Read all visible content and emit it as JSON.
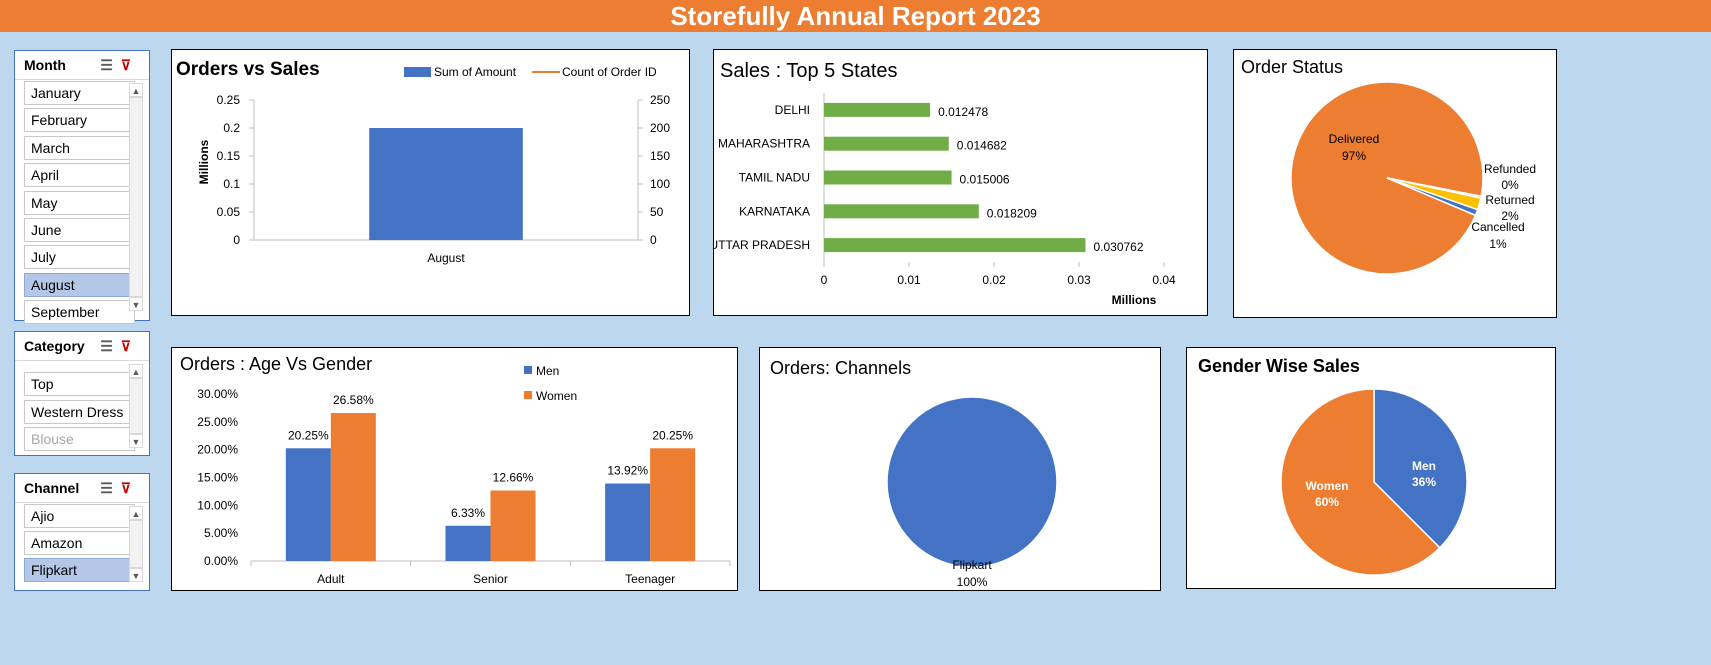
{
  "header": {
    "title": "Storefully Annual Report 2023"
  },
  "slicers": {
    "month": {
      "title": "Month",
      "items": [
        "January",
        "February",
        "March",
        "April",
        "May",
        "June",
        "July",
        "August",
        "September"
      ],
      "selected": "August"
    },
    "category": {
      "title": "Category",
      "items": [
        "Top",
        "Western Dress",
        "Blouse"
      ]
    },
    "channel": {
      "title": "Channel",
      "items": [
        "Ajio",
        "Amazon",
        "Flipkart"
      ],
      "selected": "Flipkart"
    }
  },
  "colors": {
    "blue": "#4472c4",
    "orange": "#ed7d31",
    "green": "#70ad47",
    "yellow": "#ffc000",
    "gray": "#a5a5a5"
  },
  "chart_data": [
    {
      "id": "orders_vs_sales",
      "type": "bar",
      "title": "Orders vs Sales",
      "categories": [
        "August"
      ],
      "series": [
        {
          "name": "Sum of Amount",
          "values": [
            0.2
          ],
          "axis": "left"
        },
        {
          "name": "Count of Order ID",
          "values": [
            200
          ],
          "axis": "right"
        }
      ],
      "ylabel": "Millions",
      "ylim": [
        0,
        0.25
      ],
      "yticks": [
        "0.25",
        "0.2",
        "0.15",
        "0.1",
        "0.05",
        "0"
      ],
      "y2lim": [
        0,
        250
      ],
      "y2ticks": [
        "250",
        "200",
        "150",
        "100",
        "50",
        "0"
      ],
      "legend": "top-right"
    },
    {
      "id": "top_states",
      "type": "bar",
      "orientation": "horizontal",
      "title": "Sales : Top 5 States",
      "categories": [
        "DELHI",
        "MAHARASHTRA",
        "TAMIL NADU",
        "KARNATAKA",
        "UTTAR PRADESH"
      ],
      "values": [
        0.012478,
        0.014682,
        0.015006,
        0.018209,
        0.030762
      ],
      "labels": [
        "0.012478",
        "0.014682",
        "0.015006",
        "0.018209",
        "0.030762"
      ],
      "xlabel": "Millions",
      "xlim": [
        0,
        0.04
      ],
      "xticks": [
        "0",
        "0.01",
        "0.02",
        "0.03",
        "0.04"
      ]
    },
    {
      "id": "order_status",
      "type": "pie",
      "title": "Order Status",
      "slices": [
        {
          "name": "Delivered",
          "value": 97,
          "label": "97%"
        },
        {
          "name": "Refunded",
          "value": 0.3,
          "label": "0%"
        },
        {
          "name": "Returned",
          "value": 2,
          "label": "2%"
        },
        {
          "name": "Cancelled",
          "value": 1,
          "label": "1%"
        }
      ]
    },
    {
      "id": "age_gender",
      "type": "bar",
      "title": "Orders : Age Vs Gender",
      "categories": [
        "Adult",
        "Senior",
        "Teenager"
      ],
      "series": [
        {
          "name": "Men",
          "values": [
            20.25,
            6.33,
            13.92
          ],
          "labels": [
            "20.25%",
            "6.33%",
            "13.92%"
          ]
        },
        {
          "name": "Women",
          "values": [
            26.58,
            12.66,
            20.25
          ],
          "labels": [
            "26.58%",
            "12.66%",
            "20.25%"
          ]
        }
      ],
      "ylim": [
        0,
        30
      ],
      "yticks": [
        "30.00%",
        "25.00%",
        "20.00%",
        "15.00%",
        "10.00%",
        "5.00%",
        "0.00%"
      ],
      "legend": "top-right"
    },
    {
      "id": "channels",
      "type": "pie",
      "title": "Orders: Channels",
      "slices": [
        {
          "name": "Flipkart",
          "value": 100,
          "label": "100%"
        }
      ]
    },
    {
      "id": "gender_sales",
      "type": "pie",
      "title": "Gender Wise Sales",
      "slices": [
        {
          "name": "Men",
          "value": 36,
          "label": "36%"
        },
        {
          "name": "Women",
          "value": 60,
          "label": "60%"
        }
      ]
    }
  ]
}
